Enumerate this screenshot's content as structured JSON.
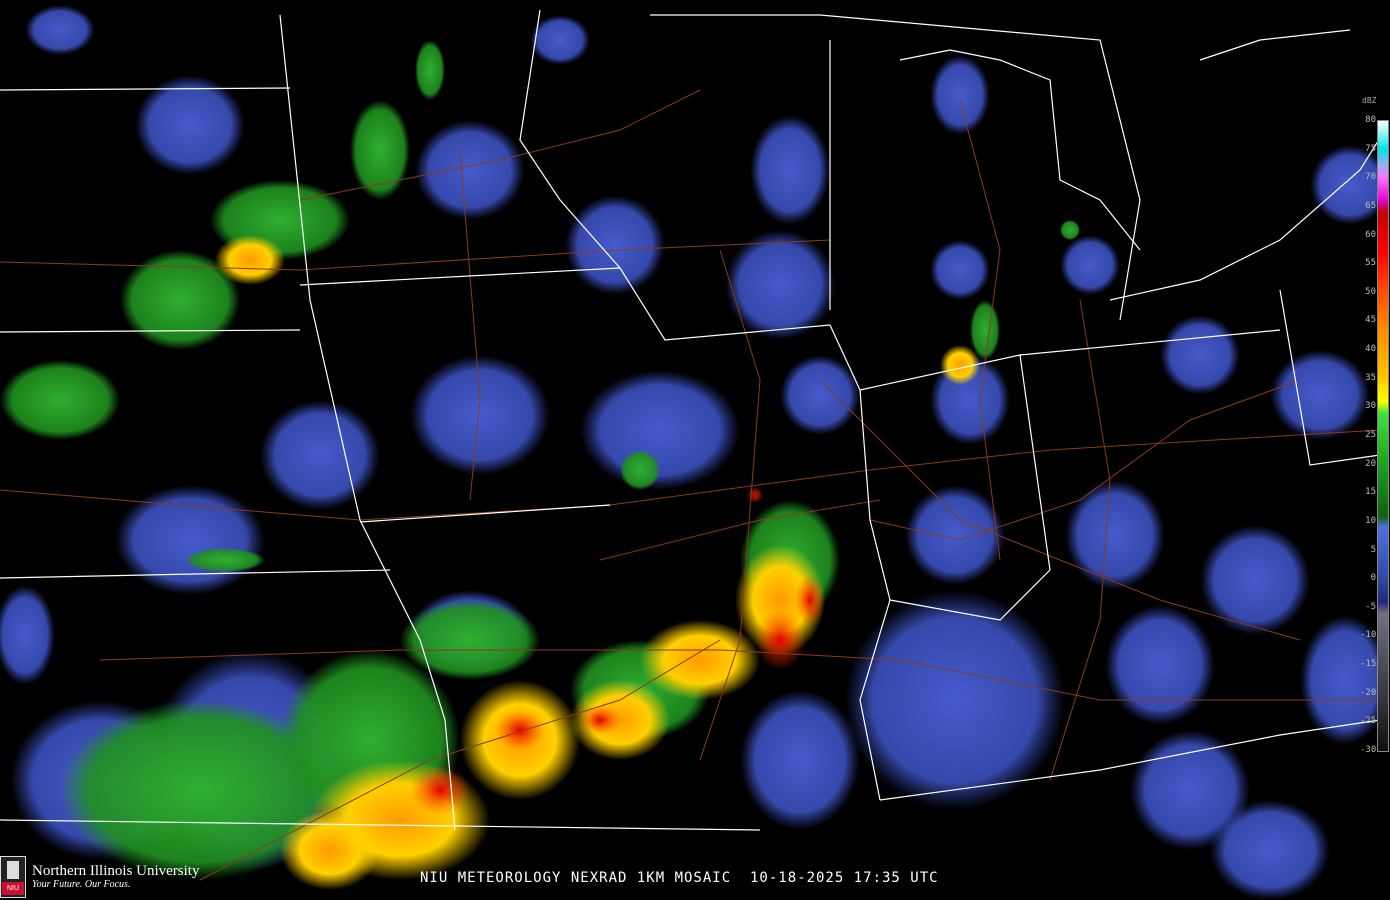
{
  "map": {
    "caption": "NIU METEOROLOGY NEXRAD 1KM MOSAIC  10-18-2025 17:35 UTC",
    "logo": {
      "name": "Northern Illinois University",
      "tagline": "Your Future. Our Focus.",
      "mark": "NIU"
    },
    "colors": {
      "background": "#000000",
      "state_lines": "#ffffff",
      "roads": "#8b3a1a"
    }
  },
  "legend": {
    "title": "dBZ",
    "labels": [
      "80",
      "75",
      "70",
      "65",
      "60",
      "55",
      "50",
      "45",
      "40",
      "35",
      "30",
      "25",
      "20",
      "15",
      "10",
      "5",
      "0",
      "-5",
      "-10",
      "-15",
      "-20",
      "-25",
      "-30"
    ],
    "colors": [
      {
        "dbz": 80,
        "color": "#ffffff"
      },
      {
        "dbz": 75,
        "color": "#00e5e5"
      },
      {
        "dbz": 72,
        "color": "#b0a8f0"
      },
      {
        "dbz": 70,
        "color": "#ff70ff"
      },
      {
        "dbz": 66,
        "color": "#e000c8"
      },
      {
        "dbz": 64,
        "color": "#c00000"
      },
      {
        "dbz": 57,
        "color": "#ff0000"
      },
      {
        "dbz": 50,
        "color": "#ff5000"
      },
      {
        "dbz": 43,
        "color": "#ff9000"
      },
      {
        "dbz": 36,
        "color": "#ffc000"
      },
      {
        "dbz": 31,
        "color": "#ffff00"
      },
      {
        "dbz": 29,
        "color": "#40e040"
      },
      {
        "dbz": 20,
        "color": "#20a020"
      },
      {
        "dbz": 11,
        "color": "#106010"
      },
      {
        "dbz": 9,
        "color": "#5070e0"
      },
      {
        "dbz": 0,
        "color": "#3048a0"
      },
      {
        "dbz": -4,
        "color": "#202878"
      },
      {
        "dbz": -6,
        "color": "#707080"
      },
      {
        "dbz": -30,
        "color": "#101010"
      }
    ]
  }
}
